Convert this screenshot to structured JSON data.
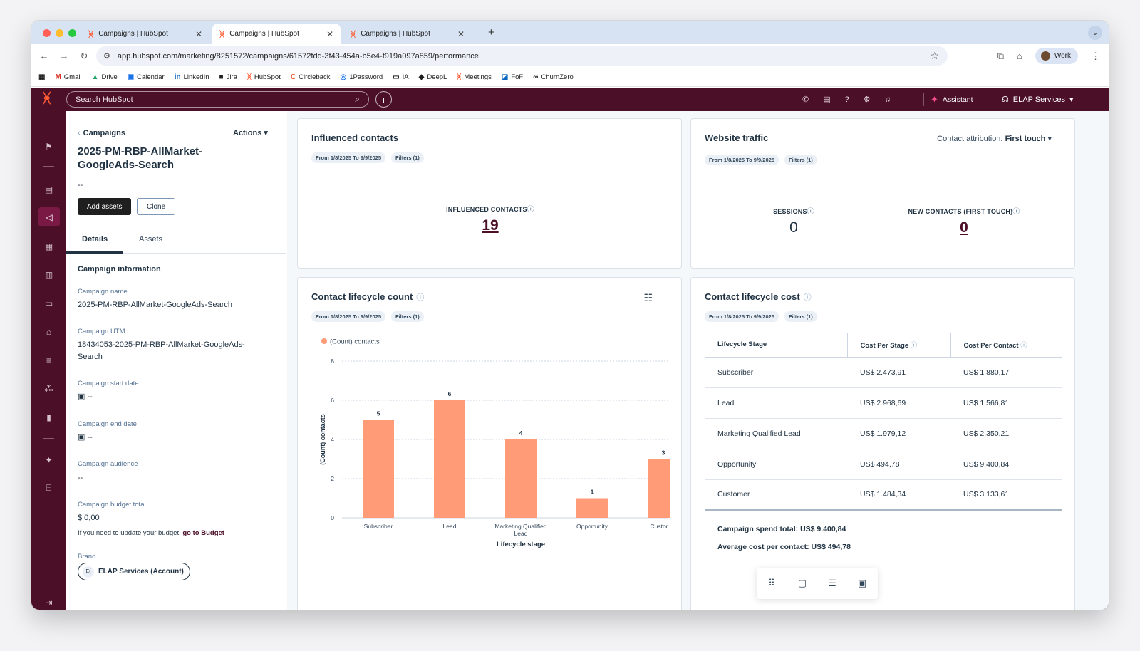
{
  "browser": {
    "tabs": [
      {
        "title": "Campaigns | HubSpot"
      },
      {
        "title": "Campaigns | HubSpot"
      },
      {
        "title": "Campaigns | HubSpot"
      }
    ],
    "url": "app.hubspot.com/marketing/8251572/campaigns/61572fdd-3f43-454a-b5e4-f919a097a859/performance",
    "profile_label": "Work",
    "bookmarks": [
      "Gmail",
      "Drive",
      "Calendar",
      "LinkedIn",
      "Jira",
      "HubSpot",
      "Circleback",
      "1Password",
      "IA",
      "DeepL",
      "Meetings",
      "FoF",
      "ChurnZero"
    ]
  },
  "hubspot": {
    "search_placeholder": "Search HubSpot",
    "assistant_label": "Assistant",
    "account_label": "ELAP Services"
  },
  "campaign": {
    "breadcrumb": "Campaigns",
    "actions_label": "Actions",
    "title": "2025-PM-RBP-AllMarket-GoogleAds-Search",
    "subtitle": "--",
    "add_assets_label": "Add assets",
    "clone_label": "Clone",
    "tabs": [
      "Details",
      "Assets"
    ],
    "section_title": "Campaign information",
    "fields": [
      {
        "label": "Campaign name",
        "value": "2025-PM-RBP-AllMarket-GoogleAds-Search"
      },
      {
        "label": "Campaign UTM",
        "value": "18434053-2025-PM-RBP-AllMarket-GoogleAds-Search"
      },
      {
        "label": "Campaign start date",
        "value": "--"
      },
      {
        "label": "Campaign end date",
        "value": "--"
      },
      {
        "label": "Campaign audience",
        "value": "--"
      },
      {
        "label": "Campaign budget total",
        "value": "$ 0,00"
      }
    ],
    "budget_note": "If you need to update your budget,",
    "budget_link": "go to Budget",
    "brand_label": "Brand",
    "brand_initials": "E(",
    "brand_value": "ELAP Services (Account)"
  },
  "influenced": {
    "title": "Influenced contacts",
    "date_pill": "From 1/8/2025 To 9/9/2025",
    "filters_pill": "Filters (1)",
    "kpi_label": "INFLUENCED CONTACTS",
    "kpi_value": "19"
  },
  "website": {
    "title": "Website traffic",
    "date_pill": "From 1/8/2025 To 9/9/2025",
    "filters_pill": "Filters (1)",
    "attribution_label": "Contact attribution:",
    "attribution_value": "First touch",
    "sessions_label": "SESSIONS",
    "sessions_value": "0",
    "new_contacts_label": "NEW CONTACTS (FIRST TOUCH)",
    "new_contacts_value": "0"
  },
  "lifecycle_count": {
    "title": "Contact lifecycle count",
    "date_pill": "From 1/8/2025 To 9/9/2025",
    "filters_pill": "Filters (1)"
  },
  "chart_data": {
    "type": "bar",
    "title": "",
    "legend": "(Count) contacts",
    "legend_position": "top-left",
    "categories": [
      "Subscriber",
      "Lead",
      "Marketing Qualified Lead",
      "Opportunity",
      "Custor"
    ],
    "values": [
      5,
      6,
      4,
      1,
      3
    ],
    "xlabel": "Lifecycle stage",
    "ylabel": "(Count) contacts",
    "ylim": [
      0,
      8
    ],
    "yticks": [
      0,
      2,
      4,
      6,
      8
    ],
    "grid": true,
    "color": "#ff9c77"
  },
  "lifecycle_cost": {
    "title": "Contact lifecycle cost",
    "date_pill": "From 1/8/2025 To 9/9/2025",
    "filters_pill": "Filters (1)",
    "columns": [
      "Lifecycle Stage",
      "Cost Per Stage",
      "Cost Per Contact"
    ],
    "rows": [
      {
        "stage": "Subscriber",
        "per_stage": "US$ 2.473,91",
        "per_contact": "US$ 1.880,17"
      },
      {
        "stage": "Lead",
        "per_stage": "US$ 2.968,69",
        "per_contact": "US$ 1.566,81"
      },
      {
        "stage": "Marketing Qualified Lead",
        "per_stage": "US$ 1.979,12",
        "per_contact": "US$ 2.350,21"
      },
      {
        "stage": "Opportunity",
        "per_stage": "US$ 494,78",
        "per_contact": "US$ 9.400,84"
      },
      {
        "stage": "Customer",
        "per_stage": "US$ 1.484,34",
        "per_contact": "US$ 3.133,61"
      }
    ],
    "spend_total": "Campaign spend total: US$ 9.400,84",
    "avg_cost": "Average cost per contact: US$ 494,78"
  },
  "colors": {
    "brand": "#4b0f28",
    "accent": "#ff5c35",
    "bar": "#ff9c77"
  }
}
